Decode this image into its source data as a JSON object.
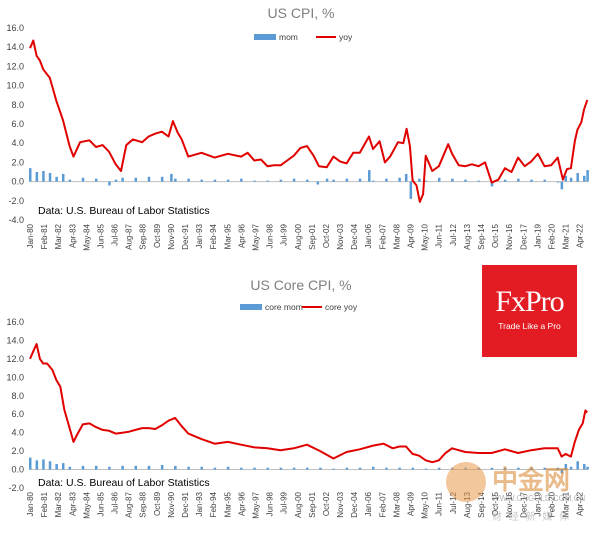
{
  "chart_data": [
    {
      "type": "bar+line",
      "title": "US CPI, %",
      "source_note": "Data: U.S. Bureau of Labor Statistics",
      "ylim": [
        -4,
        16
      ],
      "yticks": [
        "-4.0",
        "-2.0",
        "0.0",
        "2.0",
        "4.0",
        "6.0",
        "8.0",
        "10.0",
        "12.0",
        "14.0",
        "16.0"
      ],
      "xtick_labels": [
        "Jan-80",
        "Feb-81",
        "Mar-82",
        "Apr-83",
        "May-84",
        "Jun-85",
        "Jul-86",
        "Aug-87",
        "Sep-88",
        "Oct-89",
        "Nov-90",
        "Dec-91",
        "Jan-93",
        "Feb-94",
        "Mar-95",
        "Apr-96",
        "May-97",
        "Jun-98",
        "Jul-99",
        "Aug-00",
        "Sep-01",
        "Oct-02",
        "Nov-03",
        "Dec-04",
        "Jan-06",
        "Feb-07",
        "Mar-08",
        "Apr-09",
        "May-10",
        "Jun-11",
        "Jul-12",
        "Aug-13",
        "Sep-14",
        "Oct-15",
        "Nov-16",
        "Dec-17",
        "Jan-19",
        "Feb-20",
        "Mar-21",
        "Apr-22"
      ],
      "legend_position": "top",
      "series": [
        {
          "name": "mom",
          "kind": "bar",
          "color": "#5b9bd5",
          "x": [
            1980.0,
            1980.5,
            1981.0,
            1981.5,
            1982.0,
            1982.5,
            1983.0,
            1984.0,
            1985.0,
            1986.0,
            1986.5,
            1987.0,
            1988.0,
            1989.0,
            1990.0,
            1990.7,
            1991.0,
            1992.0,
            1993.0,
            1994.0,
            1995.0,
            1996.0,
            1997.0,
            1998.0,
            1999.0,
            2000.0,
            2001.0,
            2001.8,
            2002.5,
            2003.0,
            2004.0,
            2005.0,
            2005.7,
            2006.0,
            2007.0,
            2008.0,
            2008.5,
            2008.85,
            2009.0,
            2009.5,
            2010.0,
            2011.0,
            2012.0,
            2013.0,
            2014.0,
            2015.0,
            2016.0,
            2017.0,
            2018.0,
            2019.0,
            2020.0,
            2020.3,
            2020.6,
            2021.0,
            2021.5,
            2022.0,
            2022.25
          ],
          "values": [
            1.4,
            1.0,
            1.1,
            0.9,
            0.5,
            0.8,
            0.2,
            0.4,
            0.3,
            -0.4,
            0.2,
            0.4,
            0.4,
            0.5,
            0.5,
            0.8,
            0.3,
            0.3,
            0.2,
            0.2,
            0.2,
            0.3,
            0.1,
            0.1,
            0.2,
            0.3,
            0.2,
            -0.3,
            0.3,
            0.2,
            0.3,
            0.3,
            1.2,
            0.1,
            0.3,
            0.4,
            0.8,
            -1.8,
            0.2,
            0.3,
            0.1,
            0.4,
            0.3,
            0.2,
            0.1,
            -0.5,
            0.2,
            0.3,
            0.2,
            0.2,
            -0.1,
            -0.8,
            0.6,
            0.4,
            0.9,
            0.6,
            1.2
          ]
        },
        {
          "name": "yoy",
          "kind": "line",
          "color": "#e00000",
          "x": [
            1980.0,
            1980.25,
            1980.5,
            1980.75,
            1981.0,
            1981.5,
            1982.0,
            1982.5,
            1983.0,
            1983.3,
            1983.8,
            1984.5,
            1985.0,
            1985.5,
            1986.0,
            1986.5,
            1986.9,
            1987.3,
            1987.8,
            1988.5,
            1989.0,
            1989.5,
            1990.0,
            1990.5,
            1990.83,
            1991.2,
            1991.5,
            1992.0,
            1993.0,
            1994.0,
            1995.0,
            1996.0,
            1996.5,
            1997.0,
            1997.5,
            1998.0,
            1998.5,
            1999.0,
            1999.5,
            2000.0,
            2000.5,
            2001.0,
            2001.5,
            2001.9,
            2002.5,
            2003.0,
            2003.5,
            2004.0,
            2004.5,
            2005.0,
            2005.7,
            2006.0,
            2006.5,
            2006.9,
            2007.3,
            2007.9,
            2008.3,
            2008.55,
            2008.8,
            2009.0,
            2009.3,
            2009.55,
            2009.8,
            2010.0,
            2010.5,
            2011.0,
            2011.7,
            2012.0,
            2012.5,
            2013.0,
            2013.5,
            2014.0,
            2014.5,
            2015.0,
            2015.5,
            2016.0,
            2016.5,
            2017.0,
            2017.5,
            2018.0,
            2018.5,
            2019.0,
            2019.5,
            2020.0,
            2020.4,
            2020.7,
            2021.0,
            2021.3,
            2021.5,
            2021.8,
            2022.0,
            2022.25
          ],
          "values": [
            13.9,
            14.7,
            13.1,
            12.6,
            11.7,
            10.8,
            8.4,
            6.4,
            3.7,
            2.6,
            4.1,
            4.3,
            3.6,
            3.8,
            3.1,
            1.8,
            1.1,
            3.8,
            4.4,
            4.1,
            4.7,
            5.0,
            5.2,
            4.7,
            6.3,
            5.1,
            4.4,
            2.6,
            3.0,
            2.5,
            2.9,
            2.6,
            3.0,
            2.2,
            2.3,
            1.6,
            1.7,
            1.7,
            2.2,
            2.7,
            3.5,
            3.7,
            2.7,
            1.6,
            1.5,
            2.6,
            2.1,
            1.9,
            3.0,
            3.0,
            4.7,
            3.4,
            4.2,
            2.0,
            2.6,
            4.1,
            4.0,
            5.5,
            3.7,
            0.1,
            -0.4,
            -2.1,
            -1.3,
            2.7,
            1.1,
            1.6,
            3.9,
            2.9,
            1.7,
            1.6,
            1.8,
            1.6,
            2.0,
            -0.1,
            0.2,
            1.4,
            1.0,
            2.5,
            1.6,
            2.1,
            2.9,
            1.6,
            1.7,
            2.5,
            0.2,
            1.3,
            1.4,
            4.2,
            5.4,
            6.2,
            7.5,
            8.5
          ]
        }
      ]
    },
    {
      "type": "bar+line",
      "title": "US Core CPI, %",
      "source_note": "Data: U.S. Bureau of Labor Statistics",
      "ylim": [
        -2,
        16
      ],
      "yticks": [
        "-2.0",
        "0.0",
        "2.0",
        "4.0",
        "6.0",
        "8.0",
        "10.0",
        "12.0",
        "14.0",
        "16.0"
      ],
      "xtick_labels": [
        "Jan-80",
        "Feb-81",
        "Mar-82",
        "Apr-83",
        "May-84",
        "Jun-85",
        "Jul-86",
        "Aug-87",
        "Sep-88",
        "Oct-89",
        "Nov-90",
        "Dec-91",
        "Jan-93",
        "Feb-94",
        "Mar-95",
        "Apr-96",
        "May-97",
        "Jun-98",
        "Jul-99",
        "Aug-00",
        "Sep-01",
        "Oct-02",
        "Nov-03",
        "Dec-04",
        "Jan-06",
        "Feb-07",
        "Mar-08",
        "Apr-09",
        "May-10",
        "Jun-11",
        "Jul-12",
        "Aug-13",
        "Sep-14",
        "Oct-15",
        "Nov-16",
        "Dec-17",
        "Jan-19",
        "Feb-20",
        "Mar-21",
        "Apr-22"
      ],
      "legend_position": "top",
      "series": [
        {
          "name": "core mom",
          "kind": "bar",
          "color": "#5b9bd5",
          "x": [
            1980.0,
            1980.5,
            1981.0,
            1981.5,
            1982.0,
            1982.5,
            1983.0,
            1984.0,
            1985.0,
            1986.0,
            1987.0,
            1988.0,
            1989.0,
            1990.0,
            1991.0,
            1992.0,
            1993.0,
            1994.0,
            1995.0,
            1996.0,
            1997.0,
            1998.0,
            1999.0,
            2000.0,
            2001.0,
            2002.0,
            2003.0,
            2004.0,
            2005.0,
            2006.0,
            2007.0,
            2008.0,
            2009.0,
            2010.0,
            2011.0,
            2012.0,
            2013.0,
            2014.0,
            2015.0,
            2016.0,
            2017.0,
            2018.0,
            2019.0,
            2020.0,
            2020.3,
            2020.6,
            2021.0,
            2021.5,
            2022.0,
            2022.25
          ],
          "values": [
            1.3,
            1.0,
            1.1,
            0.9,
            0.6,
            0.7,
            0.3,
            0.4,
            0.4,
            0.3,
            0.4,
            0.4,
            0.4,
            0.5,
            0.4,
            0.3,
            0.3,
            0.2,
            0.3,
            0.2,
            0.2,
            0.2,
            0.2,
            0.2,
            0.2,
            0.2,
            0.1,
            0.2,
            0.2,
            0.3,
            0.2,
            0.2,
            0.2,
            0.1,
            0.2,
            0.2,
            0.2,
            0.2,
            0.2,
            0.2,
            0.2,
            0.2,
            0.2,
            0.2,
            -0.4,
            0.6,
            0.3,
            0.9,
            0.6,
            0.3
          ]
        },
        {
          "name": "core yoy",
          "kind": "line",
          "color": "#e00000",
          "x": [
            1980.0,
            1980.3,
            1980.5,
            1980.75,
            1981.0,
            1981.3,
            1981.7,
            1982.0,
            1982.3,
            1982.6,
            1983.0,
            1983.3,
            1983.5,
            1984.0,
            1984.5,
            1985.0,
            1985.5,
            1986.0,
            1986.5,
            1987.0,
            1987.5,
            1988.0,
            1988.5,
            1989.0,
            1989.5,
            1990.0,
            1990.5,
            1991.0,
            1991.5,
            1992.0,
            1993.0,
            1994.0,
            1995.0,
            1996.0,
            1997.0,
            1998.0,
            1999.0,
            2000.0,
            2001.0,
            2002.0,
            2003.0,
            2004.0,
            2005.0,
            2006.0,
            2006.8,
            2007.5,
            2008.0,
            2008.5,
            2009.0,
            2009.5,
            2010.0,
            2010.5,
            2011.0,
            2011.5,
            2012.0,
            2012.5,
            2013.0,
            2014.0,
            2015.0,
            2016.0,
            2017.0,
            2018.0,
            2019.0,
            2020.0,
            2020.3,
            2020.6,
            2021.0,
            2021.3,
            2021.6,
            2021.9,
            2022.1,
            2022.25
          ],
          "values": [
            12.0,
            13.0,
            13.6,
            12.0,
            11.5,
            11.5,
            10.8,
            9.7,
            9.0,
            6.5,
            4.5,
            3.0,
            3.6,
            4.9,
            5.0,
            4.6,
            4.3,
            4.2,
            3.9,
            4.0,
            4.1,
            4.3,
            4.5,
            4.5,
            4.4,
            4.8,
            5.3,
            5.6,
            4.7,
            3.9,
            3.3,
            2.8,
            3.0,
            2.7,
            2.4,
            2.3,
            2.1,
            2.3,
            2.7,
            2.0,
            1.2,
            1.9,
            2.2,
            2.6,
            2.8,
            2.3,
            2.5,
            2.5,
            1.7,
            1.5,
            1.0,
            0.8,
            1.0,
            1.8,
            2.3,
            2.1,
            1.9,
            1.8,
            1.8,
            2.2,
            1.8,
            2.1,
            2.3,
            2.3,
            1.4,
            1.7,
            1.4,
            3.0,
            4.3,
            5.0,
            6.4,
            6.2
          ]
        }
      ]
    }
  ],
  "brand": {
    "name": "FxPro",
    "tagline": "Trade Like a Pro",
    "color": "#e31b23"
  },
  "watermark": {
    "name": "中金网",
    "url": "WWW.CNGOLD.COM.CN",
    "tagline": "财 经 新 媒 体"
  }
}
